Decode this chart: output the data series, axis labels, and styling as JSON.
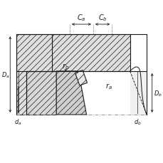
{
  "bg_color": "#ffffff",
  "line_color": "#1a1a1a",
  "figsize": [
    2.3,
    2.3
  ],
  "dpi": 100,
  "lw": 0.8,
  "hatch_lw": 0.5
}
